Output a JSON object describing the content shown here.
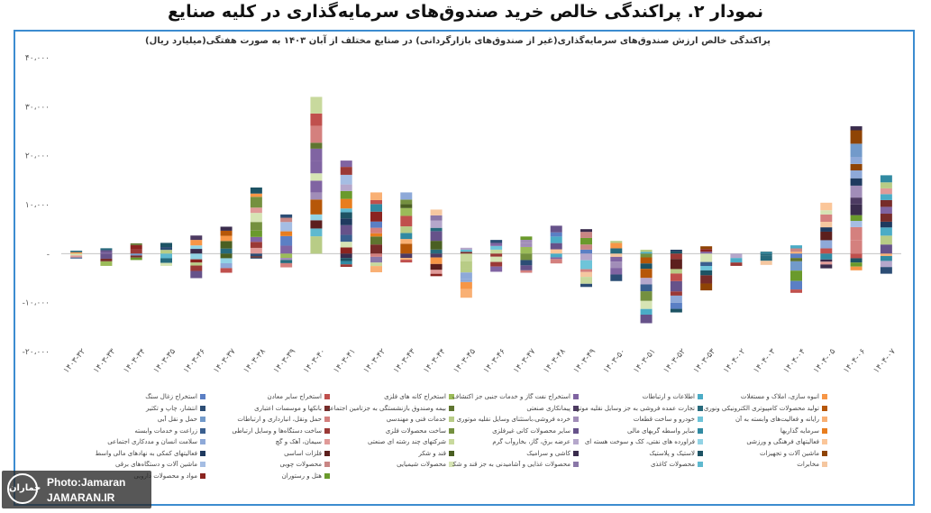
{
  "figure_title": "نمودار ۲. پراکندگی خالص خرید صندوق‌های سرمایه‌گذاری در کلیه صنایع",
  "watermark": {
    "logo_text": "جماران",
    "line1": "Photo:Jamaran",
    "line2": "JAMARAN.IR"
  },
  "colors": {
    "frame": "#3c8cd0",
    "axis": "#bbbbbb"
  },
  "chart_data": {
    "type": "bar",
    "stacked": true,
    "title": "پراکندگی خالص ارزش صندوق‌های سرمایه‌گذاری(غیر از صندوق‌های بازارگردانی) در صنایع مختلف از آبان ۱۴۰۳ به صورت هفتگی(میلیارد ریال)",
    "ylim": [
      -20000,
      40000
    ],
    "yticks": [
      "۴۰،۰۰۰",
      "۳۰،۰۰۰",
      "۲۰،۰۰۰",
      "۱۰،۰۰۰",
      "-",
      "-۱۰،۰۰۰",
      "-۲۰،۰۰۰"
    ],
    "ytick_values": [
      40000,
      30000,
      20000,
      10000,
      0,
      -10000,
      -20000
    ],
    "grid": false,
    "categories": [
      "۱۴۰۳-۳۲",
      "۱۴۰۳-۳۳",
      "۱۴۰۳-۳۴",
      "۱۴۰۳-۳۵",
      "۱۴۰۳-۳۶",
      "۱۴۰۳-۳۷",
      "۱۴۰۳-۳۸",
      "۱۴۰۳-۳۹",
      "۱۴۰۳-۴۰",
      "۱۴۰۳-۴۱",
      "۱۴۰۳-۴۲",
      "۱۴۰۳-۴۳",
      "۱۴۰۳-۴۴",
      "۱۴۰۳-۴۵",
      "۱۴۰۳-۴۶",
      "۱۴۰۳-۴۷",
      "۱۴۰۳-۴۸",
      "۱۴۰۳-۴۹",
      "۱۴۰۳-۵۰",
      "۱۴۰۳-۵۱",
      "۱۴۰۳-۵۲",
      "۱۴۰۳-۵۳",
      "۱۴۰۴-۰۲",
      "۱۴۰۴-۰۳",
      "۱۴۰۴-۰۴",
      "۱۴۰۴-۰۵",
      "۱۴۰۴-۰۶",
      "۱۴۰۴-۰۷"
    ],
    "positive_totals": [
      600,
      1100,
      2100,
      2200,
      3700,
      5500,
      13500,
      8000,
      32000,
      19000,
      12500,
      12500,
      9000,
      1200,
      2800,
      3500,
      5700,
      5000,
      2600,
      800,
      800,
      1500,
      0,
      400,
      1700,
      10400,
      26000,
      16000
    ],
    "negative_totals": [
      -1000,
      -2500,
      -1300,
      -2500,
      -5000,
      -3900,
      -1000,
      -2800,
      0,
      -2700,
      -3800,
      -1800,
      -4600,
      -9000,
      -3700,
      -3900,
      -2000,
      -6800,
      -5600,
      -14200,
      -12000,
      -7500,
      -2500,
      -2300,
      -8000,
      -3000,
      -3400,
      -4100
    ],
    "series": [
      {
        "name": "استخراج زغال سنگ",
        "color": "#5b7fc4"
      },
      {
        "name": "استخراج سایر معادن",
        "color": "#c0504d"
      },
      {
        "name": "استخراج کانه های فلزی",
        "color": "#9bbb59"
      },
      {
        "name": "استخراج نفت گاز و خدمات جنبی جز اکتشاف",
        "color": "#8064a2"
      },
      {
        "name": "اطلاعات و ارتباطات",
        "color": "#4bacc6"
      },
      {
        "name": "انبوه سازی، املاک و مستغلات",
        "color": "#f79646"
      },
      {
        "name": "انتشار، چاپ و تکثیر",
        "color": "#2c4d75"
      },
      {
        "name": "بانکها و موسسات اعتباری",
        "color": "#772c2a"
      },
      {
        "name": "بیمه وصندوق بازنشستگی به جزتامین اجتماعی",
        "color": "#5f7530"
      },
      {
        "name": "پیمانکاری صنعتی",
        "color": "#4d3b62"
      },
      {
        "name": "تجارت عمده فروشی به جز وسایل نقلیه موتور",
        "color": "#276a7c"
      },
      {
        "name": "تولید محصولات کامپیوتری الکترونیکی ونوری",
        "color": "#b65708"
      },
      {
        "name": "حمل و نقل آبی",
        "color": "#729aca"
      },
      {
        "name": "حمل ونقل، انبارداری و ارتباطات",
        "color": "#d4807e"
      },
      {
        "name": "خدمات فنی و مهندسی",
        "color": "#b8cc86"
      },
      {
        "name": "خرده فروشی،باستثنای وسایل نقلیه موتوری",
        "color": "#a18db8"
      },
      {
        "name": "خودرو و ساخت قطعات",
        "color": "#6ec4d9"
      },
      {
        "name": "رایانه و فعالیت‌های وابسته به آن",
        "color": "#f9b074"
      },
      {
        "name": "زراعت و خدمات وابسته",
        "color": "#3a5f8f"
      },
      {
        "name": "ساخت دستگاه‌ها و وسایل ارتباطی",
        "color": "#9b3936"
      },
      {
        "name": "ساخت محصولات فلزی",
        "color": "#74903f"
      },
      {
        "name": "سایر محصولات کانی غیرفلزی",
        "color": "#66528a"
      },
      {
        "name": "سایر واسطه گریهای مالی",
        "color": "#318aa2"
      },
      {
        "name": "سرمایه گذاریها",
        "color": "#e87d1e"
      },
      {
        "name": "سلامت انسان و مددکاری اجتماعی",
        "color": "#8ea9d8"
      },
      {
        "name": "سیمان، آهک و گچ",
        "color": "#e09a98"
      },
      {
        "name": "شرکتهای چند رشته ای صنعتی",
        "color": "#c8d99d"
      },
      {
        "name": "عرضه برق، گاز، بخاروآب گرم",
        "color": "#b5a7cb"
      },
      {
        "name": "فراورده های نفتی، کک و سوخت هسته ای",
        "color": "#92d3e5"
      },
      {
        "name": "فعالیتهای فرهنگی و ورزشی",
        "color": "#fbc699"
      },
      {
        "name": "فعالیتهای کمکی به نهادهای مالی واسط",
        "color": "#1f3a5f"
      },
      {
        "name": "فلزات اساسی",
        "color": "#5c1f1d"
      },
      {
        "name": "قند و شکر",
        "color": "#4a5f22"
      },
      {
        "name": "کاشی و سرامیک",
        "color": "#3a2c4d"
      },
      {
        "name": "لاستیک و پلاستیک",
        "color": "#1d5364"
      },
      {
        "name": "ماشین آلات و تجهیزات",
        "color": "#8f4405"
      },
      {
        "name": "ماشین آلات و دستگاه‌های برقی",
        "color": "#a5bde3"
      },
      {
        "name": "محصولات چوبی",
        "color": "#c98684"
      },
      {
        "name": "محصولات شیمیایی",
        "color": "#d6e4b4"
      },
      {
        "name": "محصولات غذایی و آشامیدنی به جز قند و شکر",
        "color": "#8a77a8"
      },
      {
        "name": "محصولات کاغذی",
        "color": "#5fb9cf"
      },
      {
        "name": "مخابرات",
        "color": "#f5c7a0"
      },
      {
        "name": "مواد و محصولات دارویی",
        "color": "#8b2420"
      },
      {
        "name": "هتل و رستوران",
        "color": "#6a9a2c"
      }
    ]
  }
}
